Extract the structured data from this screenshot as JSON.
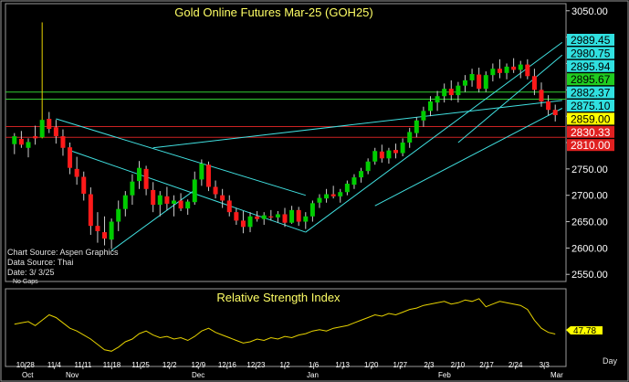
{
  "window": {
    "title": "Gold Online Futures Mar-25 (GOH25)",
    "rsi_title": "Relative Strength Index",
    "info": {
      "source": "Chart Source: Aspen Graphics",
      "data_source": "Data Source: Thai",
      "date": "Date:   3/ 3/25",
      "gaps": "No Gaps"
    },
    "day_label": "Day"
  },
  "colors": {
    "background": "#000000",
    "frame": "#808080",
    "up": "#00cc00",
    "down": "#ff1a1a",
    "title": "#ffff66",
    "trendline": "#40e0e0",
    "rsi_line": "#e6d200",
    "support_green": "#33cc33",
    "resistance_red": "#cc2222"
  },
  "chart_data": [
    {
      "type": "candlestick",
      "title": "Gold Online Futures Mar-25 (GOH25)",
      "ylim": [
        2540,
        3060
      ],
      "y_ticks": [
        2550,
        2600,
        2650,
        2700,
        2750,
        2800,
        2850,
        2900,
        2950,
        3000,
        3050
      ],
      "y_tick_labels": [
        "2550.00",
        "2600.00",
        "2650.00",
        "2700.00",
        "2750.00",
        "2800.00",
        "2850.00",
        "2900.00",
        "2950.00",
        "3000.00",
        "3050.00"
      ],
      "x_tick_labels": [
        "10/28",
        "11/4",
        "11/11",
        "11/18",
        "11/25",
        "12/2",
        "12/9",
        "12/16",
        "12/23",
        "1/2",
        "1/6",
        "1/13",
        "1/20",
        "1/27",
        "2/3",
        "2/10",
        "2/17",
        "2/24",
        "3/3"
      ],
      "month_labels": [
        "Oct",
        "Nov",
        "Dec",
        "Jan",
        "Feb",
        "Mar"
      ],
      "price_flags": [
        {
          "value": "2989.45",
          "color": "#30e0e0",
          "text": "#000000"
        },
        {
          "value": "2980.75",
          "color": "#30e0e0",
          "text": "#000000"
        },
        {
          "value": "2895.94",
          "color": "#30e0e0",
          "text": "#000000"
        },
        {
          "value": "2895.67",
          "color": "#20cc20",
          "text": "#000000"
        },
        {
          "value": "2882.37",
          "color": "#30e0e0",
          "text": "#000000"
        },
        {
          "value": "2875.10",
          "color": "#30e0e0",
          "text": "#000000"
        },
        {
          "value": "2859.00",
          "color": "#ffff00",
          "text": "#000000"
        },
        {
          "value": "2830.33",
          "color": "#e02020",
          "text": "#ffffff"
        },
        {
          "value": "2810.00",
          "color": "#e02020",
          "text": "#ffffff"
        }
      ],
      "horizontal_lines": [
        {
          "y": 2895.67,
          "color": "#33cc33"
        },
        {
          "y": 2882.37,
          "color": "#33cc33"
        },
        {
          "y": 2830.33,
          "color": "#cc2222"
        },
        {
          "y": 2810.0,
          "color": "#cc2222"
        }
      ],
      "trendlines": [
        {
          "x1": 8,
          "y1": 2785,
          "x2": 42,
          "y2": 2630
        },
        {
          "x1": 6,
          "y1": 2845,
          "x2": 42,
          "y2": 2700
        },
        {
          "x1": 42,
          "y1": 2630,
          "x2": 79,
          "y2": 2990
        },
        {
          "x1": 52,
          "y1": 2680,
          "x2": 79,
          "y2": 2865
        },
        {
          "x1": 20,
          "y1": 2790,
          "x2": 79,
          "y2": 2880
        },
        {
          "x1": 64,
          "y1": 2800,
          "x2": 79,
          "y2": 2966
        },
        {
          "x1": 14,
          "y1": 2595,
          "x2": 26,
          "y2": 2710
        }
      ],
      "candles": [
        {
          "o": 2797,
          "h": 2818,
          "l": 2778,
          "c": 2812
        },
        {
          "o": 2807,
          "h": 2822,
          "l": 2790,
          "c": 2796
        },
        {
          "o": 2790,
          "h": 2808,
          "l": 2772,
          "c": 2801
        },
        {
          "o": 2812,
          "h": 2832,
          "l": 2796,
          "c": 2808
        },
        {
          "o": 2810,
          "h": 3028,
          "l": 2808,
          "c": 2843
        },
        {
          "o": 2845,
          "h": 2858,
          "l": 2818,
          "c": 2826
        },
        {
          "o": 2829,
          "h": 2843,
          "l": 2798,
          "c": 2812
        },
        {
          "o": 2812,
          "h": 2825,
          "l": 2775,
          "c": 2790
        },
        {
          "o": 2791,
          "h": 2800,
          "l": 2740,
          "c": 2752
        },
        {
          "o": 2750,
          "h": 2773,
          "l": 2720,
          "c": 2735
        },
        {
          "o": 2735,
          "h": 2745,
          "l": 2690,
          "c": 2703
        },
        {
          "o": 2702,
          "h": 2715,
          "l": 2625,
          "c": 2642
        },
        {
          "o": 2642,
          "h": 2668,
          "l": 2610,
          "c": 2632
        },
        {
          "o": 2630,
          "h": 2660,
          "l": 2605,
          "c": 2618
        },
        {
          "o": 2616,
          "h": 2656,
          "l": 2598,
          "c": 2650
        },
        {
          "o": 2650,
          "h": 2690,
          "l": 2632,
          "c": 2674
        },
        {
          "o": 2674,
          "h": 2708,
          "l": 2660,
          "c": 2700
        },
        {
          "o": 2700,
          "h": 2740,
          "l": 2682,
          "c": 2726
        },
        {
          "o": 2727,
          "h": 2765,
          "l": 2712,
          "c": 2752
        },
        {
          "o": 2750,
          "h": 2756,
          "l": 2700,
          "c": 2712
        },
        {
          "o": 2710,
          "h": 2725,
          "l": 2668,
          "c": 2682
        },
        {
          "o": 2682,
          "h": 2708,
          "l": 2660,
          "c": 2700
        },
        {
          "o": 2698,
          "h": 2716,
          "l": 2672,
          "c": 2684
        },
        {
          "o": 2684,
          "h": 2700,
          "l": 2660,
          "c": 2690
        },
        {
          "o": 2690,
          "h": 2704,
          "l": 2670,
          "c": 2675
        },
        {
          "o": 2675,
          "h": 2692,
          "l": 2663,
          "c": 2688
        },
        {
          "o": 2687,
          "h": 2745,
          "l": 2682,
          "c": 2730
        },
        {
          "o": 2730,
          "h": 2768,
          "l": 2718,
          "c": 2760
        },
        {
          "o": 2758,
          "h": 2764,
          "l": 2708,
          "c": 2716
        },
        {
          "o": 2716,
          "h": 2728,
          "l": 2694,
          "c": 2702
        },
        {
          "o": 2700,
          "h": 2712,
          "l": 2676,
          "c": 2690
        },
        {
          "o": 2690,
          "h": 2700,
          "l": 2660,
          "c": 2668
        },
        {
          "o": 2668,
          "h": 2676,
          "l": 2644,
          "c": 2652
        },
        {
          "o": 2652,
          "h": 2670,
          "l": 2628,
          "c": 2640
        },
        {
          "o": 2640,
          "h": 2668,
          "l": 2630,
          "c": 2660
        },
        {
          "o": 2660,
          "h": 2670,
          "l": 2650,
          "c": 2655
        },
        {
          "o": 2655,
          "h": 2668,
          "l": 2644,
          "c": 2662
        },
        {
          "o": 2660,
          "h": 2672,
          "l": 2652,
          "c": 2658
        },
        {
          "o": 2658,
          "h": 2670,
          "l": 2648,
          "c": 2664
        },
        {
          "o": 2664,
          "h": 2676,
          "l": 2640,
          "c": 2648
        },
        {
          "o": 2648,
          "h": 2680,
          "l": 2646,
          "c": 2672
        },
        {
          "o": 2672,
          "h": 2678,
          "l": 2642,
          "c": 2650
        },
        {
          "o": 2650,
          "h": 2668,
          "l": 2636,
          "c": 2660
        },
        {
          "o": 2660,
          "h": 2690,
          "l": 2650,
          "c": 2685
        },
        {
          "o": 2686,
          "h": 2702,
          "l": 2676,
          "c": 2695
        },
        {
          "o": 2694,
          "h": 2712,
          "l": 2686,
          "c": 2702
        },
        {
          "o": 2702,
          "h": 2718,
          "l": 2694,
          "c": 2698
        },
        {
          "o": 2698,
          "h": 2712,
          "l": 2686,
          "c": 2706
        },
        {
          "o": 2706,
          "h": 2728,
          "l": 2700,
          "c": 2722
        },
        {
          "o": 2720,
          "h": 2740,
          "l": 2712,
          "c": 2734
        },
        {
          "o": 2734,
          "h": 2752,
          "l": 2724,
          "c": 2746
        },
        {
          "o": 2746,
          "h": 2770,
          "l": 2740,
          "c": 2764
        },
        {
          "o": 2764,
          "h": 2790,
          "l": 2758,
          "c": 2784
        },
        {
          "o": 2783,
          "h": 2796,
          "l": 2762,
          "c": 2770
        },
        {
          "o": 2770,
          "h": 2790,
          "l": 2760,
          "c": 2785
        },
        {
          "o": 2786,
          "h": 2798,
          "l": 2770,
          "c": 2780
        },
        {
          "o": 2780,
          "h": 2808,
          "l": 2774,
          "c": 2800
        },
        {
          "o": 2800,
          "h": 2828,
          "l": 2790,
          "c": 2820
        },
        {
          "o": 2818,
          "h": 2848,
          "l": 2810,
          "c": 2842
        },
        {
          "o": 2842,
          "h": 2868,
          "l": 2830,
          "c": 2860
        },
        {
          "o": 2860,
          "h": 2888,
          "l": 2850,
          "c": 2878
        },
        {
          "o": 2876,
          "h": 2898,
          "l": 2860,
          "c": 2888
        },
        {
          "o": 2888,
          "h": 2912,
          "l": 2876,
          "c": 2902
        },
        {
          "o": 2902,
          "h": 2918,
          "l": 2880,
          "c": 2890
        },
        {
          "o": 2890,
          "h": 2915,
          "l": 2876,
          "c": 2908
        },
        {
          "o": 2908,
          "h": 2928,
          "l": 2896,
          "c": 2918
        },
        {
          "o": 2918,
          "h": 2940,
          "l": 2906,
          "c": 2930
        },
        {
          "o": 2929,
          "h": 2942,
          "l": 2895,
          "c": 2902
        },
        {
          "o": 2902,
          "h": 2935,
          "l": 2896,
          "c": 2928
        },
        {
          "o": 2928,
          "h": 2950,
          "l": 2916,
          "c": 2940
        },
        {
          "o": 2940,
          "h": 2958,
          "l": 2922,
          "c": 2932
        },
        {
          "o": 2932,
          "h": 2950,
          "l": 2920,
          "c": 2944
        },
        {
          "o": 2944,
          "h": 2960,
          "l": 2932,
          "c": 2938
        },
        {
          "o": 2938,
          "h": 2955,
          "l": 2922,
          "c": 2948
        },
        {
          "o": 2948,
          "h": 2958,
          "l": 2920,
          "c": 2926
        },
        {
          "o": 2926,
          "h": 2940,
          "l": 2890,
          "c": 2900
        },
        {
          "o": 2900,
          "h": 2914,
          "l": 2868,
          "c": 2878
        },
        {
          "o": 2878,
          "h": 2890,
          "l": 2852,
          "c": 2862
        },
        {
          "o": 2862,
          "h": 2872,
          "l": 2840,
          "c": 2852
        }
      ]
    },
    {
      "type": "line",
      "title": "Relative Strength Index",
      "last_value_label": "47.78",
      "ylim": [
        25,
        80
      ],
      "values": [
        55,
        56,
        57,
        54,
        58,
        62,
        60,
        56,
        52,
        50,
        47,
        44,
        40,
        36,
        35,
        38,
        42,
        44,
        48,
        50,
        47,
        45,
        46,
        44,
        45,
        43,
        46,
        50,
        52,
        49,
        47,
        45,
        43,
        41,
        42,
        44,
        43,
        45,
        44,
        46,
        45,
        47,
        48,
        50,
        51,
        50,
        52,
        53,
        54,
        56,
        58,
        60,
        62,
        61,
        63,
        62,
        64,
        66,
        67,
        69,
        70,
        71,
        72,
        70,
        71,
        73,
        72,
        74,
        68,
        70,
        72,
        71,
        70,
        69,
        66,
        58,
        52,
        49,
        47.78
      ]
    }
  ]
}
